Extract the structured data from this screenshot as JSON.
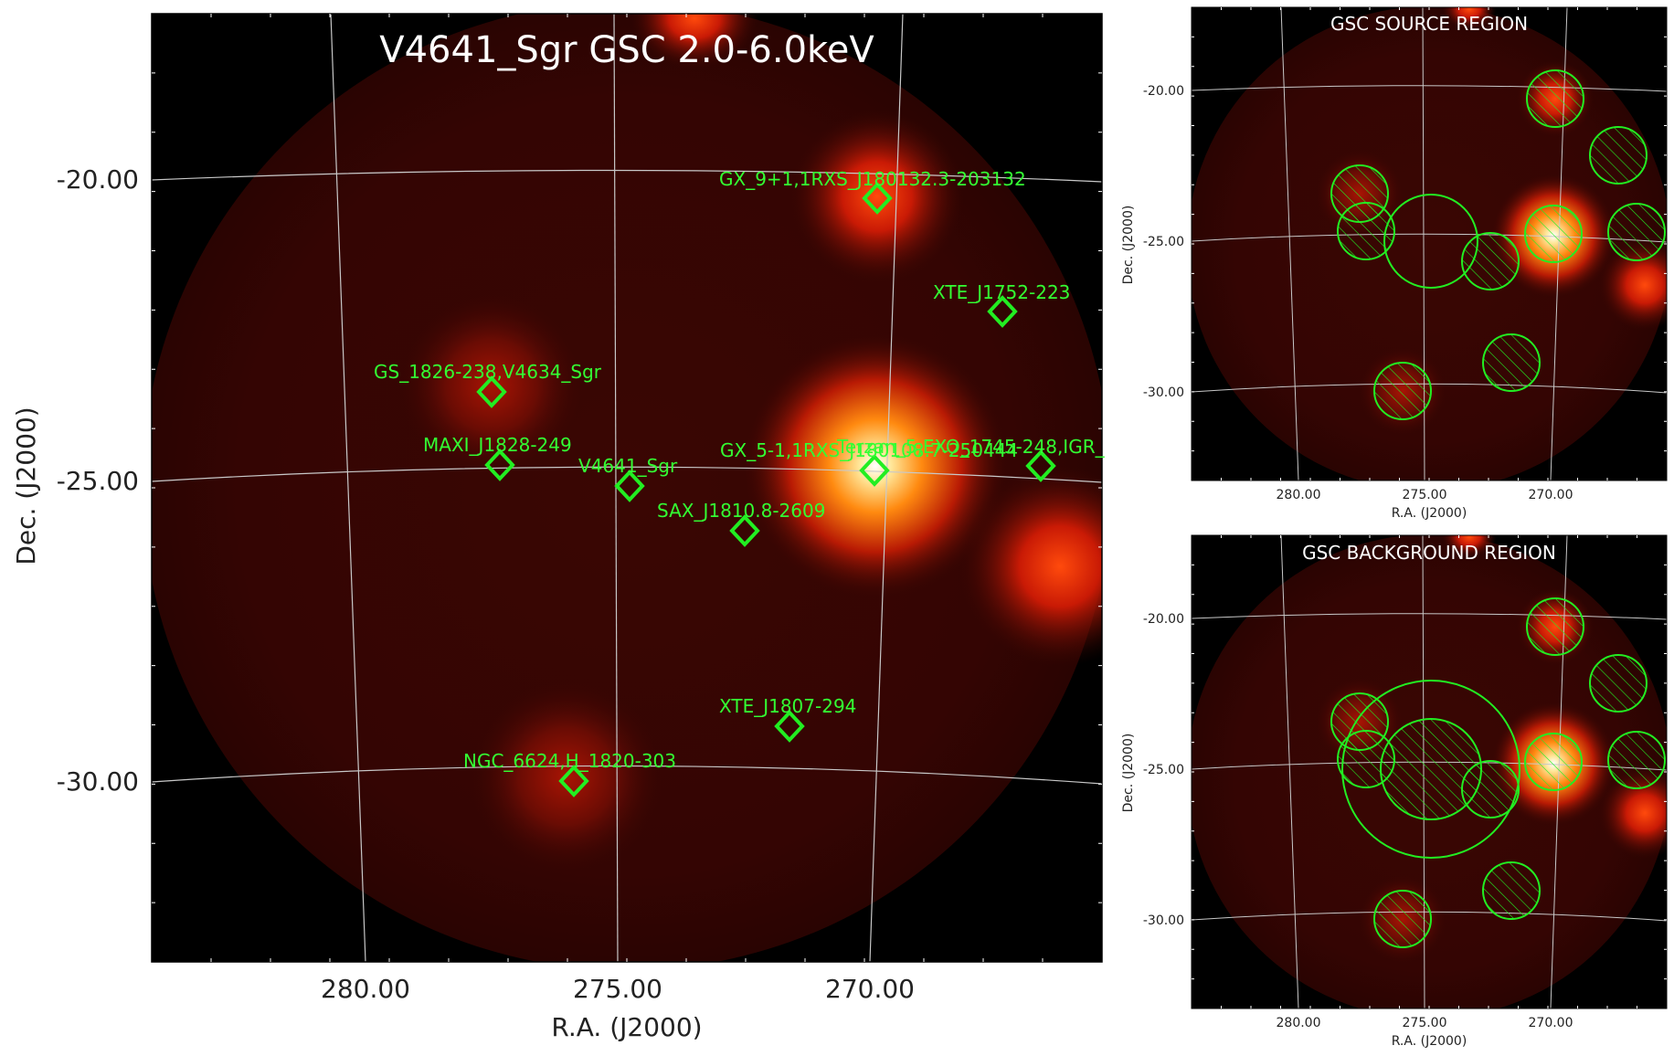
{
  "main": {
    "title": "V4641_Sgr GSC 2.0-6.0keV",
    "xlabel": "R.A. (J2000)",
    "ylabel": "Dec. (J2000)",
    "xticks": [
      "280.00",
      "275.00",
      "270.00"
    ],
    "yticks": [
      "-20.00",
      "-25.00",
      "-30.00"
    ],
    "sources": [
      {
        "name": "GX_9+1,1RXS_J180132.3-203132"
      },
      {
        "name": "XTE_J1752-223"
      },
      {
        "name": "GS_1826-238,V4634_Sgr"
      },
      {
        "name": "MAXI_J1828-249"
      },
      {
        "name": "V4641_Sgr"
      },
      {
        "name": "GX_5-1,1RXS_J180108.7-250444"
      },
      {
        "name": "Terzan_5,EXO_1745-248,IGR_"
      },
      {
        "name": "SAX_J1810.8-2609"
      },
      {
        "name": "XTE_J1807-294"
      },
      {
        "name": "NGC_6624,H_1820-303"
      }
    ]
  },
  "source_panel": {
    "title": "GSC SOURCE REGION",
    "xlabel": "R.A. (J2000)",
    "ylabel": "Dec. (J2000)",
    "xticks": [
      "280.00",
      "275.00",
      "270.00"
    ],
    "yticks": [
      "-20.00",
      "-25.00",
      "-30.00"
    ]
  },
  "background_panel": {
    "title": "GSC BACKGROUND REGION",
    "xlabel": "R.A. (J2000)",
    "ylabel": "Dec. (J2000)",
    "xticks": [
      "280.00",
      "275.00",
      "270.00"
    ],
    "yticks": [
      "-20.00",
      "-25.00",
      "-30.00"
    ]
  },
  "colors": {
    "marker": "#22ee22",
    "label": "#33ff33",
    "grid": "#c8c8c8",
    "background": "#000000"
  }
}
